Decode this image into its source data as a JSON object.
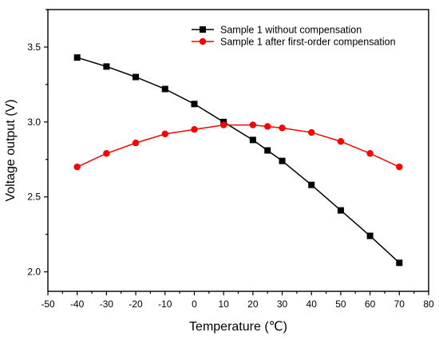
{
  "chart_data": {
    "type": "line",
    "xlabel": "Temperature (℃)",
    "ylabel": "Voltage output (V)",
    "xlim": [
      -50,
      80
    ],
    "ylim": [
      1.87,
      3.75
    ],
    "xticks": [
      -50,
      -40,
      -30,
      -20,
      -10,
      0,
      10,
      20,
      30,
      40,
      50,
      60,
      70,
      80
    ],
    "xtick_labels": [
      "-50",
      "-40",
      "-30",
      "-20",
      "-10",
      "0",
      "10",
      "20",
      "30",
      "40",
      "50",
      "60",
      "70",
      "80"
    ],
    "yticks": [
      2.0,
      2.5,
      3.0,
      3.5
    ],
    "ytick_labels": [
      "2.0",
      "2.5",
      "3.0",
      "3.5"
    ],
    "grid": false,
    "legend_position": "top-right",
    "series": [
      {
        "name": "Sample 1 without compensation",
        "color": "#000000",
        "marker": "square",
        "x": [
          -40,
          -30,
          -20,
          -10,
          0,
          10,
          20,
          25,
          30,
          40,
          50,
          60,
          70
        ],
        "y": [
          3.43,
          3.37,
          3.3,
          3.22,
          3.12,
          3.0,
          2.88,
          2.81,
          2.74,
          2.58,
          2.41,
          2.24,
          2.06
        ]
      },
      {
        "name": "Sample 1 after first-order compensation",
        "color": "#ff0000",
        "marker": "circle",
        "x": [
          -40,
          -30,
          -20,
          -10,
          0,
          10,
          20,
          25,
          30,
          40,
          50,
          60,
          70
        ],
        "y": [
          2.7,
          2.79,
          2.86,
          2.92,
          2.95,
          2.98,
          2.98,
          2.97,
          2.96,
          2.93,
          2.87,
          2.79,
          2.7
        ]
      }
    ]
  }
}
